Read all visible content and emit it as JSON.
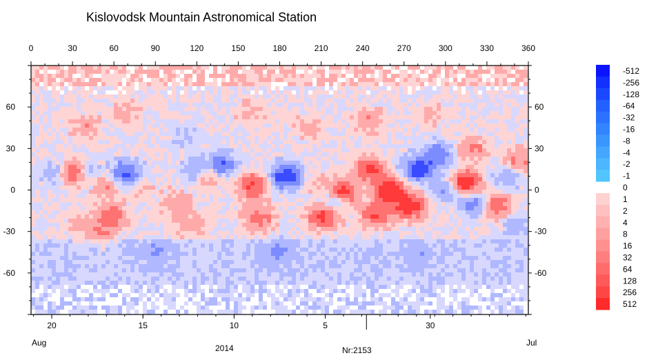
{
  "chart_data": {
    "type": "heatmap",
    "title": "Kislovodsk Mountain Astronomical Station",
    "top_axis": {
      "ticks": [
        0,
        30,
        60,
        90,
        120,
        150,
        180,
        210,
        240,
        270,
        300,
        330,
        360
      ],
      "range": [
        0,
        360
      ]
    },
    "y_axis": {
      "ticks": [
        60,
        30,
        0,
        -30,
        -60
      ],
      "tick_labels": [
        "60",
        "30",
        "0",
        "-30",
        "-60"
      ],
      "range": [
        -90,
        90
      ]
    },
    "bottom_axis": {
      "day_labels": [
        {
          "label": "20",
          "longitude": 15
        },
        {
          "label": "15",
          "longitude": 81
        },
        {
          "label": "10",
          "longitude": 147
        },
        {
          "label": "5",
          "longitude": 213
        },
        {
          "label": "30",
          "longitude": 289
        }
      ],
      "month_start": "Aug",
      "month_end": "Jul",
      "year": "2014",
      "rotation": "Nr:2153"
    },
    "colorbar": {
      "negative": {
        "labels": [
          "-512",
          "-256",
          "-128",
          "-64",
          "-32",
          "-16",
          "-8",
          "-4",
          "-2",
          "-1"
        ],
        "colors": [
          "#0a14ff",
          "#1230ff",
          "#1a48ff",
          "#2260ff",
          "#2a72ff",
          "#3284ff",
          "#3a96ff",
          "#44a6ff",
          "#4cb6ff",
          "#52c4ff"
        ]
      },
      "zero_label": "0",
      "positive": {
        "labels": [
          "1",
          "2",
          "4",
          "8",
          "16",
          "32",
          "64",
          "128",
          "256",
          "512"
        ],
        "colors": [
          "#ffd2d2",
          "#ffc0c0",
          "#ffb0b0",
          "#ffa0a0",
          "#ff9090",
          "#ff7e7e",
          "#ff6c6c",
          "#ff5a5a",
          "#ff4646",
          "#ff2a2a"
        ]
      }
    },
    "field_colors": {
      "positive": [
        "#ffd4d4",
        "#ffaaaa",
        "#ff7272",
        "#ff3a3a"
      ],
      "negative": [
        "#d8d8ff",
        "#b0b8ff",
        "#7c8cff",
        "#3a4cff"
      ],
      "neutral": "#ffffff"
    },
    "regions": [
      {
        "lon": 20,
        "lat": 12,
        "value": -120
      },
      {
        "lon": 28,
        "lat": 12,
        "value": 180
      },
      {
        "lon": 42,
        "lat": 12,
        "value": -60
      },
      {
        "lon": 55,
        "lat": 5,
        "value": 90
      },
      {
        "lon": 68,
        "lat": 12,
        "value": -150
      },
      {
        "lon": 80,
        "lat": 2,
        "value": 30
      },
      {
        "lon": 58,
        "lat": -18,
        "value": 110
      },
      {
        "lon": 50,
        "lat": -30,
        "value": 60
      },
      {
        "lon": 35,
        "lat": -25,
        "value": 40
      },
      {
        "lon": 105,
        "lat": -10,
        "value": 70
      },
      {
        "lon": 115,
        "lat": -25,
        "value": 50
      },
      {
        "lon": 120,
        "lat": 15,
        "value": -90
      },
      {
        "lon": 130,
        "lat": 12,
        "value": 120
      },
      {
        "lon": 138,
        "lat": 17,
        "value": -160
      },
      {
        "lon": 160,
        "lat": 3,
        "value": 140
      },
      {
        "lon": 165,
        "lat": -20,
        "value": 100
      },
      {
        "lon": 185,
        "lat": 10,
        "value": -200
      },
      {
        "lon": 205,
        "lat": 5,
        "value": 40
      },
      {
        "lon": 218,
        "lat": -10,
        "value": -110
      },
      {
        "lon": 226,
        "lat": -2,
        "value": 160
      },
      {
        "lon": 212,
        "lat": -18,
        "value": 180
      },
      {
        "lon": 245,
        "lat": 15,
        "value": 140
      },
      {
        "lon": 260,
        "lat": 0,
        "value": 200
      },
      {
        "lon": 250,
        "lat": -18,
        "value": 120
      },
      {
        "lon": 275,
        "lat": -12,
        "value": 180
      },
      {
        "lon": 280,
        "lat": 15,
        "value": -170
      },
      {
        "lon": 295,
        "lat": 25,
        "value": -110
      },
      {
        "lon": 300,
        "lat": 0,
        "value": -80
      },
      {
        "lon": 315,
        "lat": 5,
        "value": 190
      },
      {
        "lon": 320,
        "lat": 30,
        "value": 80
      },
      {
        "lon": 323,
        "lat": -10,
        "value": -140
      },
      {
        "lon": 335,
        "lat": -12,
        "value": 150
      },
      {
        "lon": 345,
        "lat": 10,
        "value": -80
      },
      {
        "lon": 352,
        "lat": 20,
        "value": 90
      },
      {
        "lon": 350,
        "lat": -25,
        "value": -60
      },
      {
        "lon": 40,
        "lat": 45,
        "value": 60
      },
      {
        "lon": 70,
        "lat": 55,
        "value": 50
      },
      {
        "lon": 110,
        "lat": 40,
        "value": -40
      },
      {
        "lon": 160,
        "lat": 55,
        "value": 45
      },
      {
        "lon": 200,
        "lat": 45,
        "value": 50
      },
      {
        "lon": 245,
        "lat": 50,
        "value": 70
      },
      {
        "lon": 290,
        "lat": 55,
        "value": 40
      },
      {
        "lon": 90,
        "lat": -45,
        "value": -50
      },
      {
        "lon": 180,
        "lat": -45,
        "value": -60
      },
      {
        "lon": 280,
        "lat": -45,
        "value": -50
      }
    ]
  }
}
